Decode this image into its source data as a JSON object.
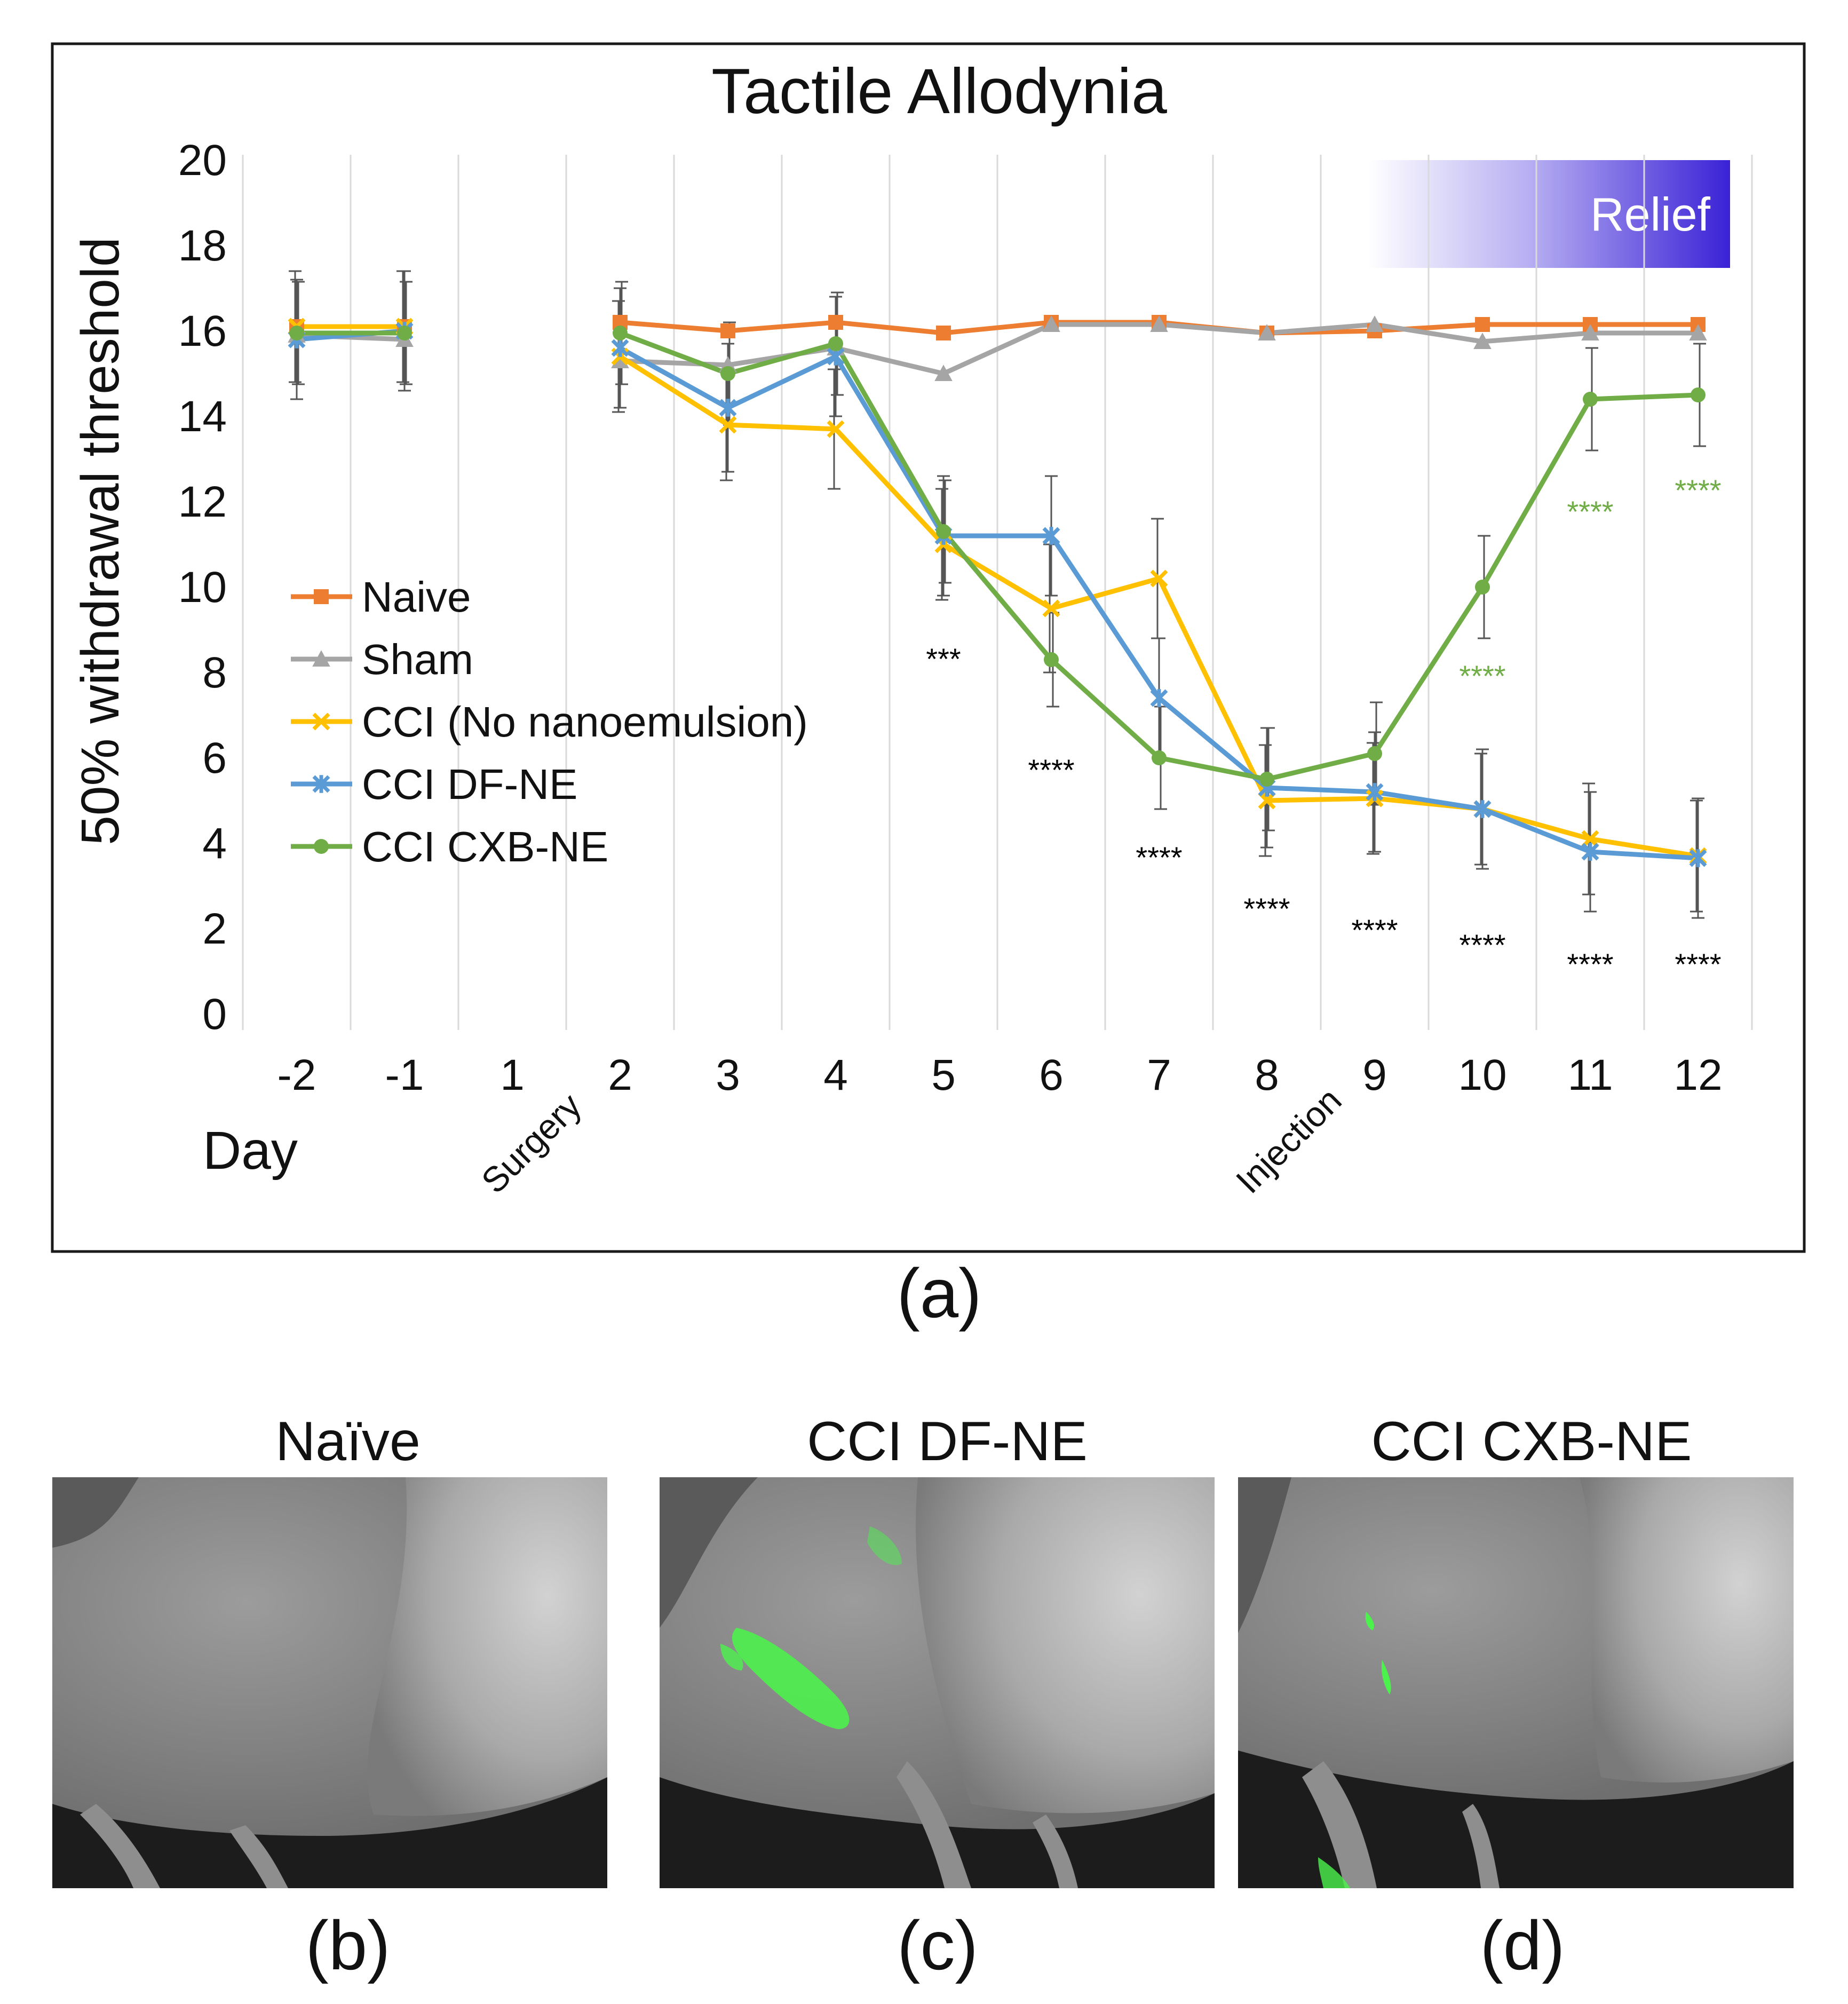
{
  "chart_data": {
    "type": "line",
    "title": "Tactile Allodynia",
    "xlabel": "Day",
    "ylabel": "50% withdrawal threshold",
    "ylim": [
      0,
      20
    ],
    "yticks": [
      "0",
      "2",
      "4",
      "6",
      "8",
      "10",
      "12",
      "14",
      "16",
      "18",
      "20"
    ],
    "categories": [
      "-2",
      "-1",
      "1",
      "2",
      "3",
      "4",
      "5",
      "6",
      "7",
      "8",
      "9",
      "10",
      "11",
      "12"
    ],
    "grid": true,
    "legend_position": "left",
    "event_labels": [
      {
        "day": "1",
        "label": "Surgery"
      },
      {
        "day": "8",
        "label": "Injection"
      }
    ],
    "relief_label": "Relief",
    "series": [
      {
        "name": "Naive",
        "color": "#ED7D31",
        "marker": "square",
        "values": [
          16.1,
          16.1,
          null,
          16.2,
          16.0,
          16.2,
          15.95,
          16.2,
          16.2,
          15.95,
          16.0,
          16.15,
          16.15,
          16.15
        ],
        "errors": [
          null,
          null,
          null,
          null,
          null,
          null,
          null,
          null,
          null,
          null,
          null,
          null,
          null,
          null
        ]
      },
      {
        "name": "Sham",
        "color": "#A5A5A5",
        "marker": "triangle",
        "values": [
          15.9,
          15.8,
          null,
          15.3,
          15.2,
          15.6,
          15.0,
          16.15,
          16.15,
          15.95,
          16.15,
          15.75,
          15.95,
          15.95
        ],
        "errors": [
          null,
          null,
          null,
          null,
          null,
          null,
          null,
          null,
          null,
          null,
          null,
          null,
          null,
          null
        ]
      },
      {
        "name": "CCI (No nanoemulsion)",
        "color": "#FFC000",
        "marker": "x",
        "values": [
          16.1,
          16.1,
          null,
          15.4,
          13.8,
          13.7,
          11.0,
          9.5,
          10.2,
          5.0,
          5.05,
          4.8,
          4.1,
          3.7
        ],
        "errors": [
          1.3,
          1.3,
          null,
          1.3,
          1.3,
          1.4,
          1.3,
          1.5,
          1.4,
          1.3,
          1.3,
          1.3,
          1.3,
          1.3
        ]
      },
      {
        "name": "CCI DF-NE",
        "color": "#5B9BD5",
        "marker": "star",
        "values": [
          15.8,
          16.0,
          null,
          15.6,
          14.2,
          15.4,
          11.2,
          11.2,
          7.4,
          5.3,
          5.2,
          4.8,
          3.8,
          3.65
        ],
        "errors": [
          1.4,
          1.4,
          null,
          1.4,
          1.5,
          1.4,
          1.4,
          1.4,
          1.4,
          1.4,
          1.4,
          1.4,
          1.4,
          1.4
        ]
      },
      {
        "name": "CCI CXB-NE",
        "color": "#70AD47",
        "marker": "circle",
        "values": [
          15.95,
          15.95,
          null,
          15.95,
          15.0,
          15.7,
          11.3,
          8.3,
          6.0,
          5.5,
          6.1,
          10.0,
          14.4,
          14.5
        ],
        "errors": [
          1.2,
          1.2,
          null,
          1.2,
          1.2,
          1.2,
          1.2,
          1.1,
          1.2,
          1.2,
          1.2,
          1.2,
          1.2,
          1.2
        ]
      }
    ],
    "significance": [
      {
        "day": "5",
        "text": "***",
        "y": 8.3,
        "color": "#000000"
      },
      {
        "day": "6",
        "text": "****",
        "y": 5.7,
        "color": "#000000"
      },
      {
        "day": "7",
        "text": "****",
        "y": 3.65,
        "color": "#000000"
      },
      {
        "day": "8",
        "text": "****",
        "y": 2.45,
        "color": "#000000"
      },
      {
        "day": "9",
        "text": "****",
        "y": 1.95,
        "color": "#000000"
      },
      {
        "day": "10",
        "text": "****",
        "y": 1.6,
        "color": "#000000"
      },
      {
        "day": "11",
        "text": "****",
        "y": 1.15,
        "color": "#000000"
      },
      {
        "day": "12",
        "text": "****",
        "y": 1.15,
        "color": "#000000"
      },
      {
        "day": "10",
        "text": "****",
        "y": 7.9,
        "color": "#70AD47"
      },
      {
        "day": "11",
        "text": "****",
        "y": 11.75,
        "color": "#70AD47"
      },
      {
        "day": "12",
        "text": "****",
        "y": 12.25,
        "color": "#70AD47"
      }
    ]
  },
  "panels": {
    "a_label": "(a)",
    "b_label": "(b)",
    "c_label": "(c)",
    "d_label": "(d)",
    "b_title": "Naïve",
    "c_title": "CCI DF-NE",
    "d_title": "CCI CXB-NE"
  }
}
